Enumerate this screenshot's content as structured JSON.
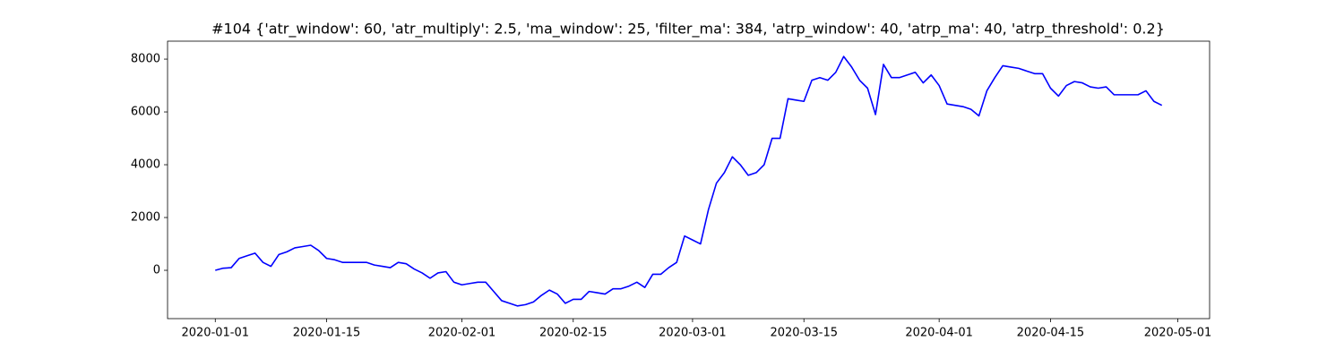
{
  "chart_data": {
    "type": "line",
    "title": "#104 {'atr_window': 60, 'atr_multiply': 2.5, 'ma_window': 25, 'filter_ma': 384, 'atrp_window': 40, 'atrp_ma': 40, 'atrp_threshold': 0.2}",
    "x": [
      "2020-01-01",
      "2020-01-02",
      "2020-01-03",
      "2020-01-04",
      "2020-01-05",
      "2020-01-06",
      "2020-01-07",
      "2020-01-08",
      "2020-01-09",
      "2020-01-10",
      "2020-01-11",
      "2020-01-12",
      "2020-01-13",
      "2020-01-14",
      "2020-01-15",
      "2020-01-16",
      "2020-01-17",
      "2020-01-18",
      "2020-01-19",
      "2020-01-20",
      "2020-01-21",
      "2020-01-22",
      "2020-01-23",
      "2020-01-24",
      "2020-01-25",
      "2020-01-26",
      "2020-01-27",
      "2020-01-28",
      "2020-01-29",
      "2020-01-30",
      "2020-01-31",
      "2020-02-01",
      "2020-02-02",
      "2020-02-03",
      "2020-02-04",
      "2020-02-05",
      "2020-02-06",
      "2020-02-07",
      "2020-02-08",
      "2020-02-09",
      "2020-02-10",
      "2020-02-11",
      "2020-02-12",
      "2020-02-13",
      "2020-02-14",
      "2020-02-15",
      "2020-02-16",
      "2020-02-17",
      "2020-02-18",
      "2020-02-19",
      "2020-02-20",
      "2020-02-21",
      "2020-02-22",
      "2020-02-23",
      "2020-02-24",
      "2020-02-25",
      "2020-02-26",
      "2020-02-27",
      "2020-02-28",
      "2020-02-29",
      "2020-03-01",
      "2020-03-02",
      "2020-03-03",
      "2020-03-04",
      "2020-03-05",
      "2020-03-06",
      "2020-03-07",
      "2020-03-08",
      "2020-03-09",
      "2020-03-10",
      "2020-03-11",
      "2020-03-12",
      "2020-03-13",
      "2020-03-14",
      "2020-03-15",
      "2020-03-16",
      "2020-03-17",
      "2020-03-18",
      "2020-03-19",
      "2020-03-20",
      "2020-03-21",
      "2020-03-22",
      "2020-03-23",
      "2020-03-24",
      "2020-03-25",
      "2020-03-26",
      "2020-03-27",
      "2020-03-28",
      "2020-03-29",
      "2020-03-30",
      "2020-03-31",
      "2020-04-01",
      "2020-04-02",
      "2020-04-03",
      "2020-04-04",
      "2020-04-05",
      "2020-04-06",
      "2020-04-07",
      "2020-04-08",
      "2020-04-09",
      "2020-04-10",
      "2020-04-11",
      "2020-04-12",
      "2020-04-13",
      "2020-04-14",
      "2020-04-15",
      "2020-04-16",
      "2020-04-17",
      "2020-04-18",
      "2020-04-19",
      "2020-04-20",
      "2020-04-21",
      "2020-04-22",
      "2020-04-23",
      "2020-04-24",
      "2020-04-25",
      "2020-04-26",
      "2020-04-27",
      "2020-04-28",
      "2020-04-29"
    ],
    "series": [
      {
        "color": "#0000ff",
        "values": [
          0,
          80,
          100,
          450,
          550,
          650,
          300,
          150,
          600,
          700,
          850,
          900,
          950,
          750,
          450,
          400,
          300,
          300,
          300,
          300,
          200,
          150,
          100,
          300,
          250,
          50,
          -100,
          -300,
          -100,
          -50,
          -450,
          -550,
          -500,
          -450,
          -450,
          -800,
          -1150,
          -1250,
          -1350,
          -1300,
          -1200,
          -950,
          -750,
          -900,
          -1250,
          -1100,
          -1100,
          -800,
          -850,
          -900,
          -700,
          -700,
          -600,
          -450,
          -650,
          -150,
          -150,
          100,
          300,
          1300,
          1150,
          1000,
          2300,
          3300,
          3700,
          4300,
          4000,
          3600,
          3700,
          4000,
          5000,
          5000,
          6500,
          6450,
          6400,
          7200,
          7300,
          7200,
          7500,
          8100,
          7700,
          7200,
          6900,
          5900,
          7800,
          7300,
          7300,
          7400,
          7500,
          7100,
          7400,
          7000,
          6300,
          6250,
          6200,
          6100,
          5850,
          6800,
          7300,
          7750,
          7700,
          7650,
          7550,
          7450,
          7450,
          6900,
          6600,
          7000,
          7150,
          7100,
          6950,
          6900,
          6950,
          6650,
          6650,
          6650,
          6650,
          6800,
          6400,
          6250
        ]
      }
    ],
    "xlim": [
      "2019-12-26",
      "2020-05-05"
    ],
    "xticks": [
      "2020-01-01",
      "2020-01-15",
      "2020-02-01",
      "2020-02-15",
      "2020-03-01",
      "2020-03-15",
      "2020-04-01",
      "2020-04-15",
      "2020-05-01"
    ],
    "ylim": [
      -1830,
      8680
    ],
    "yticks": [
      0,
      2000,
      4000,
      6000,
      8000
    ],
    "grid": false
  }
}
